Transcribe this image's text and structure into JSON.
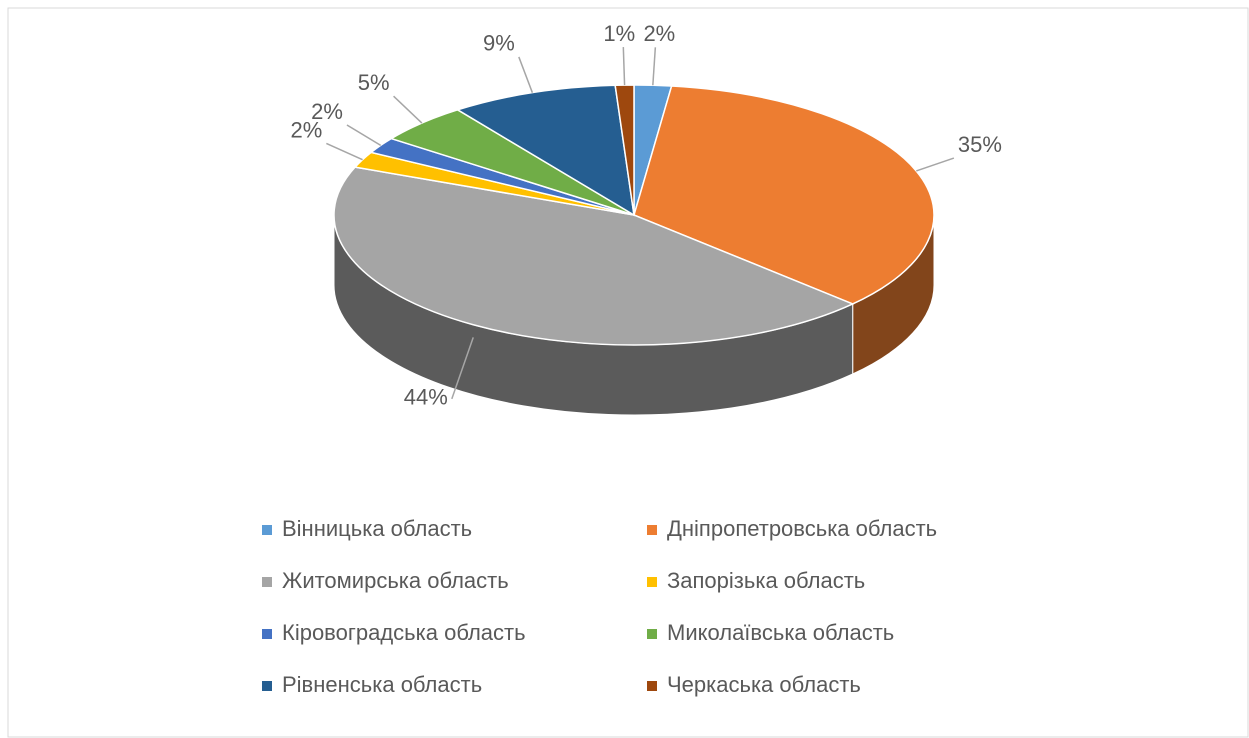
{
  "chart_data": {
    "type": "pie3d",
    "categories": [
      "Вінницька область",
      "Дніпропетровська область",
      "Житомирська область",
      "Запорізька область",
      "Кіровоградська область",
      "Миколаївська область",
      "Рівненська область",
      "Черкаська область"
    ],
    "values": [
      2,
      35,
      44,
      2,
      2,
      5,
      9,
      1
    ],
    "value_labels": [
      "2%",
      "35%",
      "44%",
      "2%",
      "2%",
      "5%",
      "9%",
      "1%"
    ],
    "colors": [
      "#5b9bd5",
      "#ed7d31",
      "#a5a5a5",
      "#ffc000",
      "#4472c4",
      "#70ad47",
      "#255e91",
      "#9e480e"
    ],
    "legend": "bottom"
  }
}
